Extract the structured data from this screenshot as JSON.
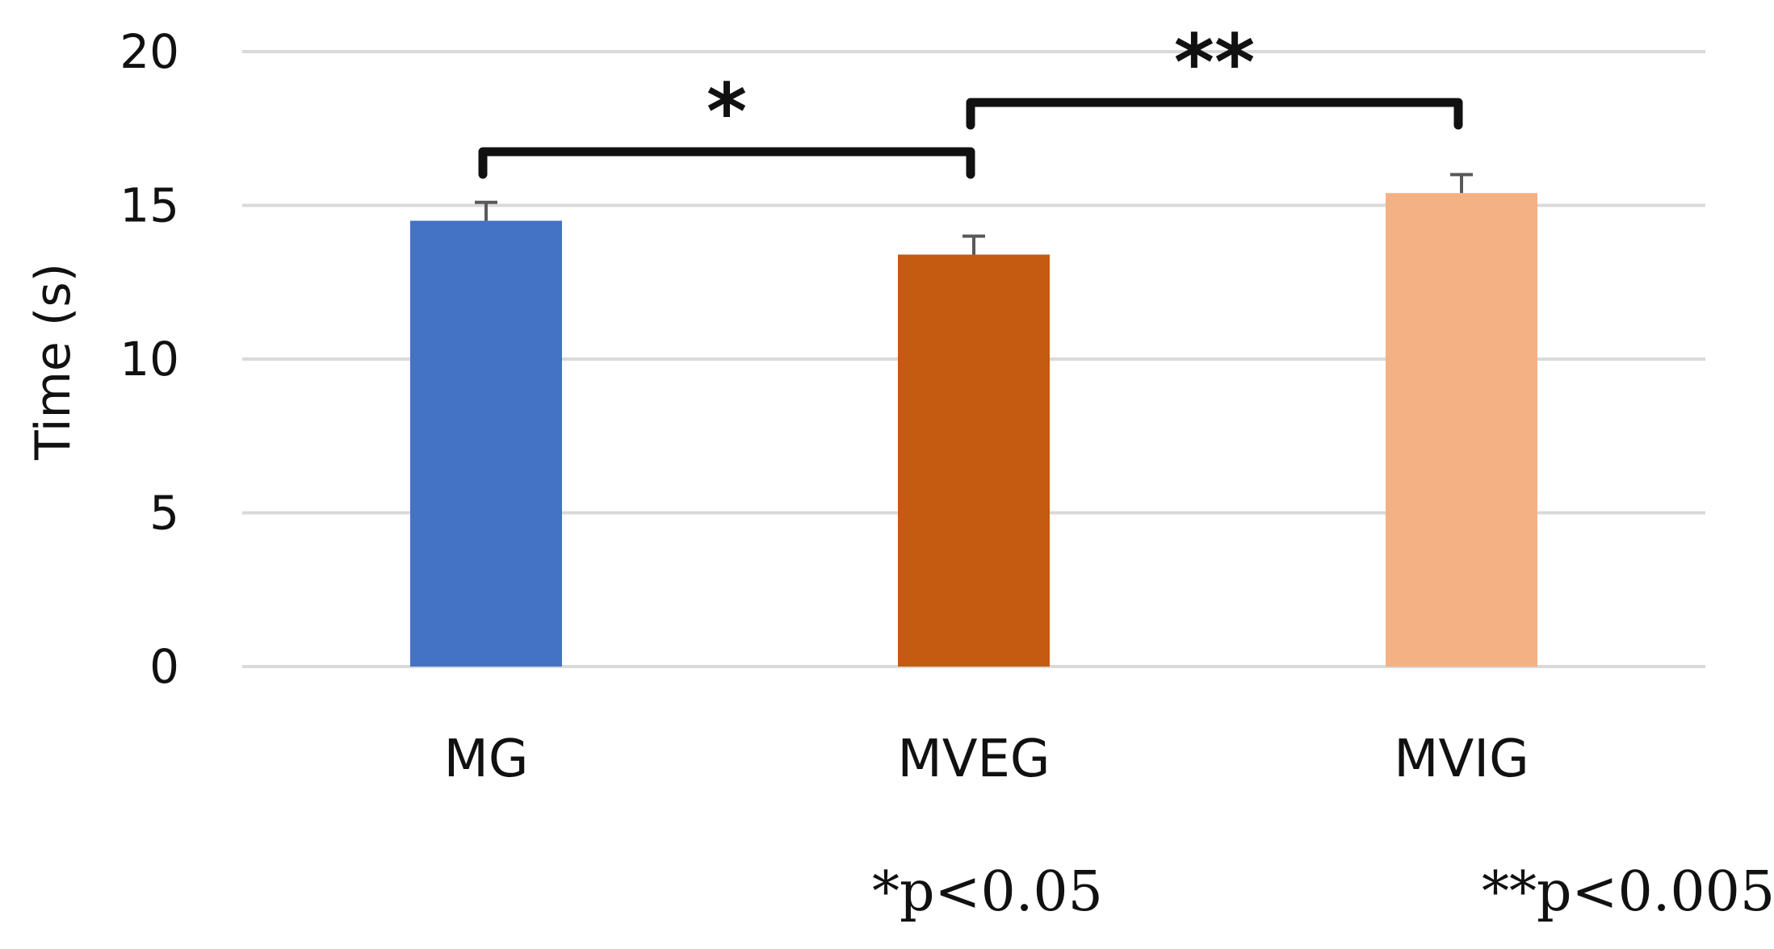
{
  "chart_data": {
    "type": "bar",
    "categories": [
      "MG",
      "MVEG",
      "MVIG"
    ],
    "values": [
      14.5,
      13.4,
      15.4
    ],
    "errors": [
      0.6,
      0.6,
      0.6
    ],
    "colors": [
      "#4472c4",
      "#c55a11",
      "#f4b183"
    ],
    "title": "",
    "xlabel": "",
    "ylabel": "Time (s)",
    "ylim": [
      0,
      20
    ],
    "yticks": [
      "0",
      "5",
      "10",
      "15",
      "20"
    ],
    "grid": true,
    "significance": [
      {
        "from": 0,
        "to": 1,
        "mark": "*"
      },
      {
        "from": 1,
        "to": 2,
        "mark": "**"
      }
    ],
    "footnotes": [
      "*p<0.05",
      "**p<0.005"
    ]
  }
}
